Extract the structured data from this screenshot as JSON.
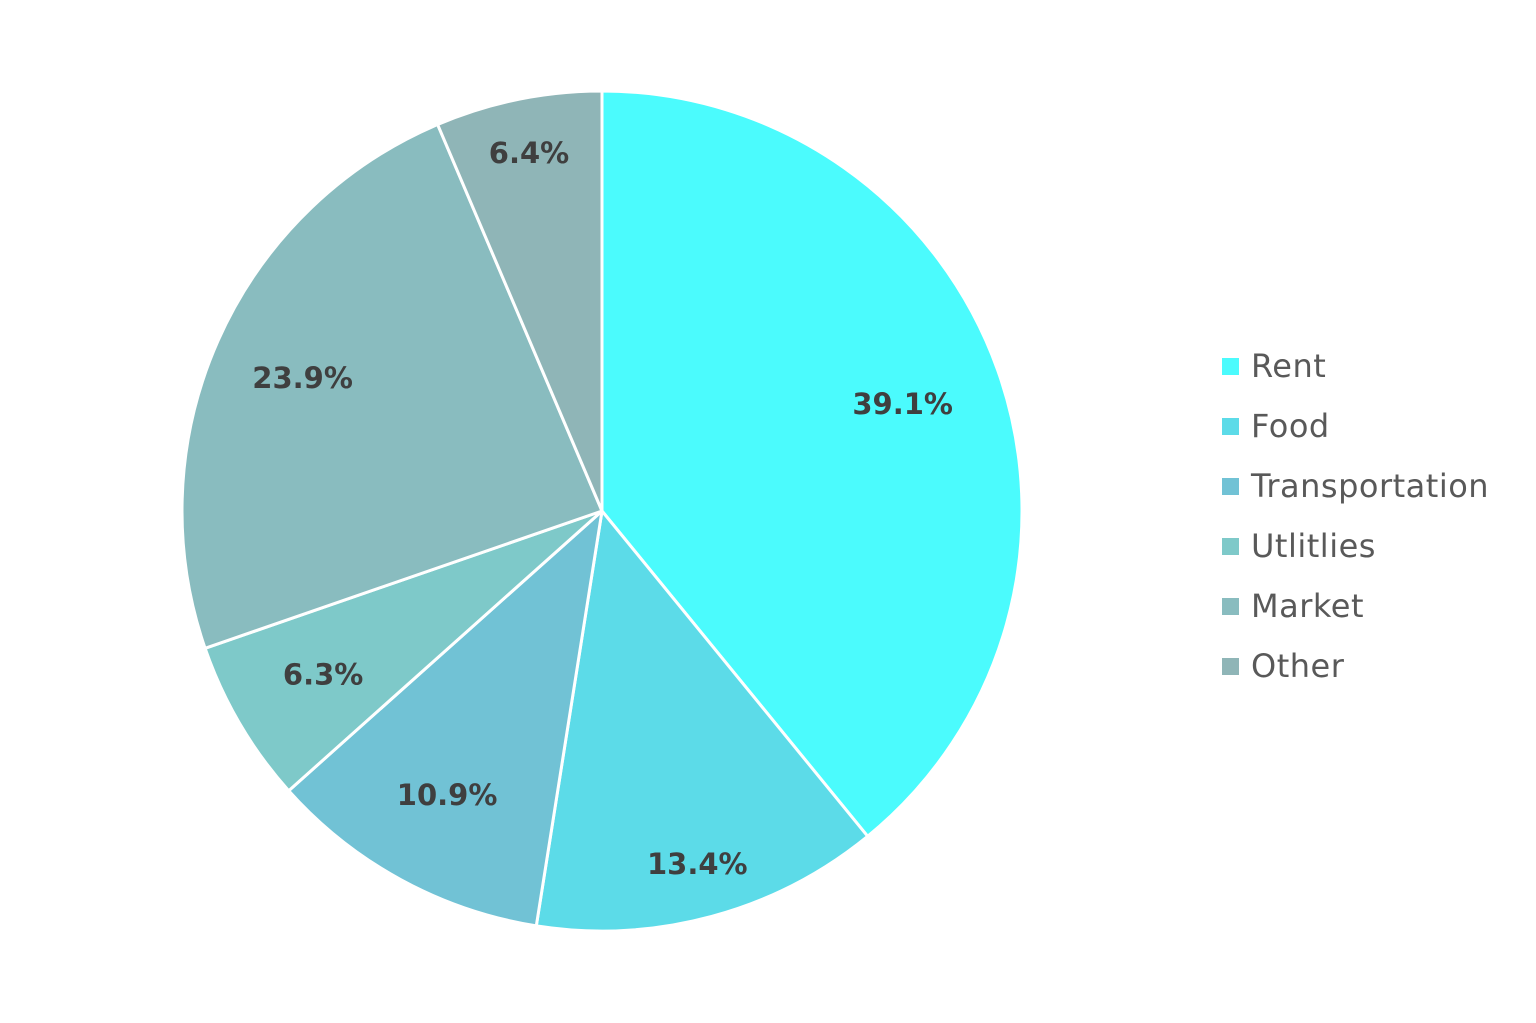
{
  "chart_data": {
    "type": "pie",
    "title": "",
    "categories": [
      "Rent",
      "Food",
      "Transportation",
      "Utlitlies",
      "Market",
      "Other"
    ],
    "values": [
      39.1,
      13.4,
      10.9,
      6.3,
      23.9,
      6.4
    ],
    "labels": [
      "39.1%",
      "13.4%",
      "10.9%",
      "6.3%",
      "23.9%",
      "6.4%"
    ],
    "colors": [
      "#4bfbfd",
      "#5cdbe8",
      "#71c2d5",
      "#7ec9c9",
      "#89bcbf",
      "#8fb5b7"
    ],
    "start_angle": "12 o'clock",
    "direction": "clockwise",
    "legend_position": "right"
  },
  "legend": {
    "items": [
      {
        "label": "Rent",
        "color": "#4bfbfd"
      },
      {
        "label": "Food",
        "color": "#5cdbe8"
      },
      {
        "label": "Transportation",
        "color": "#71c2d5"
      },
      {
        "label": "Utlitlies",
        "color": "#7ec9c9"
      },
      {
        "label": "Market",
        "color": "#89bcbf"
      },
      {
        "label": "Other",
        "color": "#8fb5b7"
      }
    ]
  }
}
